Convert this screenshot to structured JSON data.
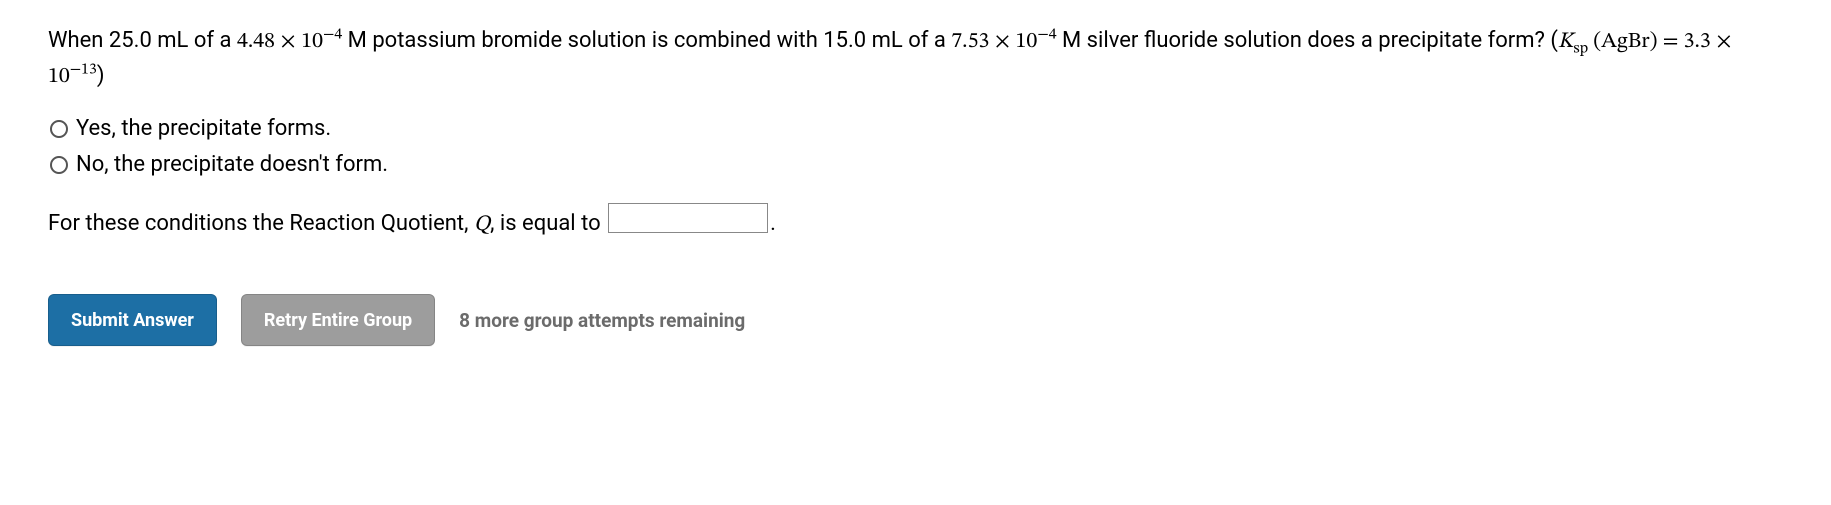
{
  "question": {
    "text_parts": {
      "p1": "When 25.0 mL of a ",
      "coef1": "4.48",
      "times": " × ",
      "base1": "10",
      "exp1": "−4",
      "p2": " M potassium bromide solution is combined with 15.0 mL of a ",
      "coef2": "7.53",
      "base2": "10",
      "exp2": "−4",
      "p3": " M silver fluoride solution does a precipitate form? (",
      "ksp_k": "K",
      "ksp_sub": "sp",
      "ksp_arg_open": " (",
      "ksp_arg": "AgBr",
      "ksp_arg_close": ")",
      "eq": " = ",
      "ksp_val_coef": "3.3",
      "ksp_val_base": "10",
      "ksp_val_exp": "−13",
      "p4": ")"
    }
  },
  "options": {
    "yes": "Yes, the precipitate forms.",
    "no": "No, the precipitate doesn't form."
  },
  "followup": {
    "pre": "For these conditions the Reaction Quotient, ",
    "q_sym": "Q",
    "mid": ", is equal to ",
    "post": "."
  },
  "buttons": {
    "submit": "Submit Answer",
    "retry": "Retry Entire Group"
  },
  "attempts": "8 more group attempts remaining",
  "colors": {
    "primary_btn": "#1d6fa5",
    "secondary_btn": "#9d9d9d",
    "attempts_text": "#6b6b6b"
  }
}
